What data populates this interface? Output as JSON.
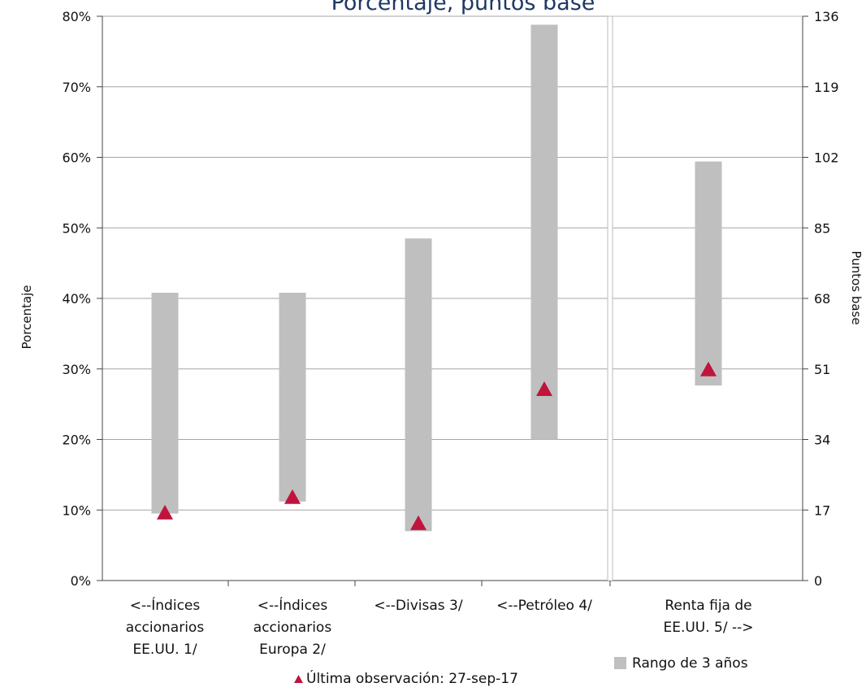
{
  "chart_data": {
    "type": "bar",
    "title": "Porcentaje, puntos base",
    "ylabel": "Porcentaje",
    "y2label": "Puntos base",
    "ylim": [
      0,
      80
    ],
    "y2lim": [
      0,
      136
    ],
    "y_ticks": [
      "0%",
      "10%",
      "20%",
      "30%",
      "40%",
      "50%",
      "60%",
      "70%",
      "80%"
    ],
    "y2_ticks": [
      "0",
      "17",
      "34",
      "51",
      "68",
      "85",
      "102",
      "119",
      "136"
    ],
    "grid": true,
    "categories": [
      [
        "<--Índices",
        "accionarios",
        "EE.UU. 1/"
      ],
      [
        "<--Índices",
        "accionarios",
        "Europa 2/"
      ],
      [
        "<--Divisas 3/"
      ],
      [
        "<--Petróleo 4/"
      ],
      [
        "Renta fija de",
        "EE.UU. 5/ -->"
      ]
    ],
    "axis_per_category": [
      "left",
      "left",
      "left",
      "left",
      "right"
    ],
    "series": [
      {
        "name": "Rango de 3 años",
        "kind": "range",
        "low": [
          9.5,
          11.2,
          7.0,
          20.0,
          47
        ],
        "high": [
          40.8,
          40.8,
          48.5,
          78.8,
          101
        ]
      },
      {
        "name": "Última observación: 27-sep-17",
        "kind": "marker",
        "values": [
          9.7,
          11.9,
          8.2,
          27.2,
          51
        ]
      }
    ],
    "colors": {
      "range": "#bfbfbf",
      "marker": "#c0143c",
      "grid": "#a6a6a6",
      "title": "#1f3864"
    },
    "legend_position": "bottom"
  }
}
